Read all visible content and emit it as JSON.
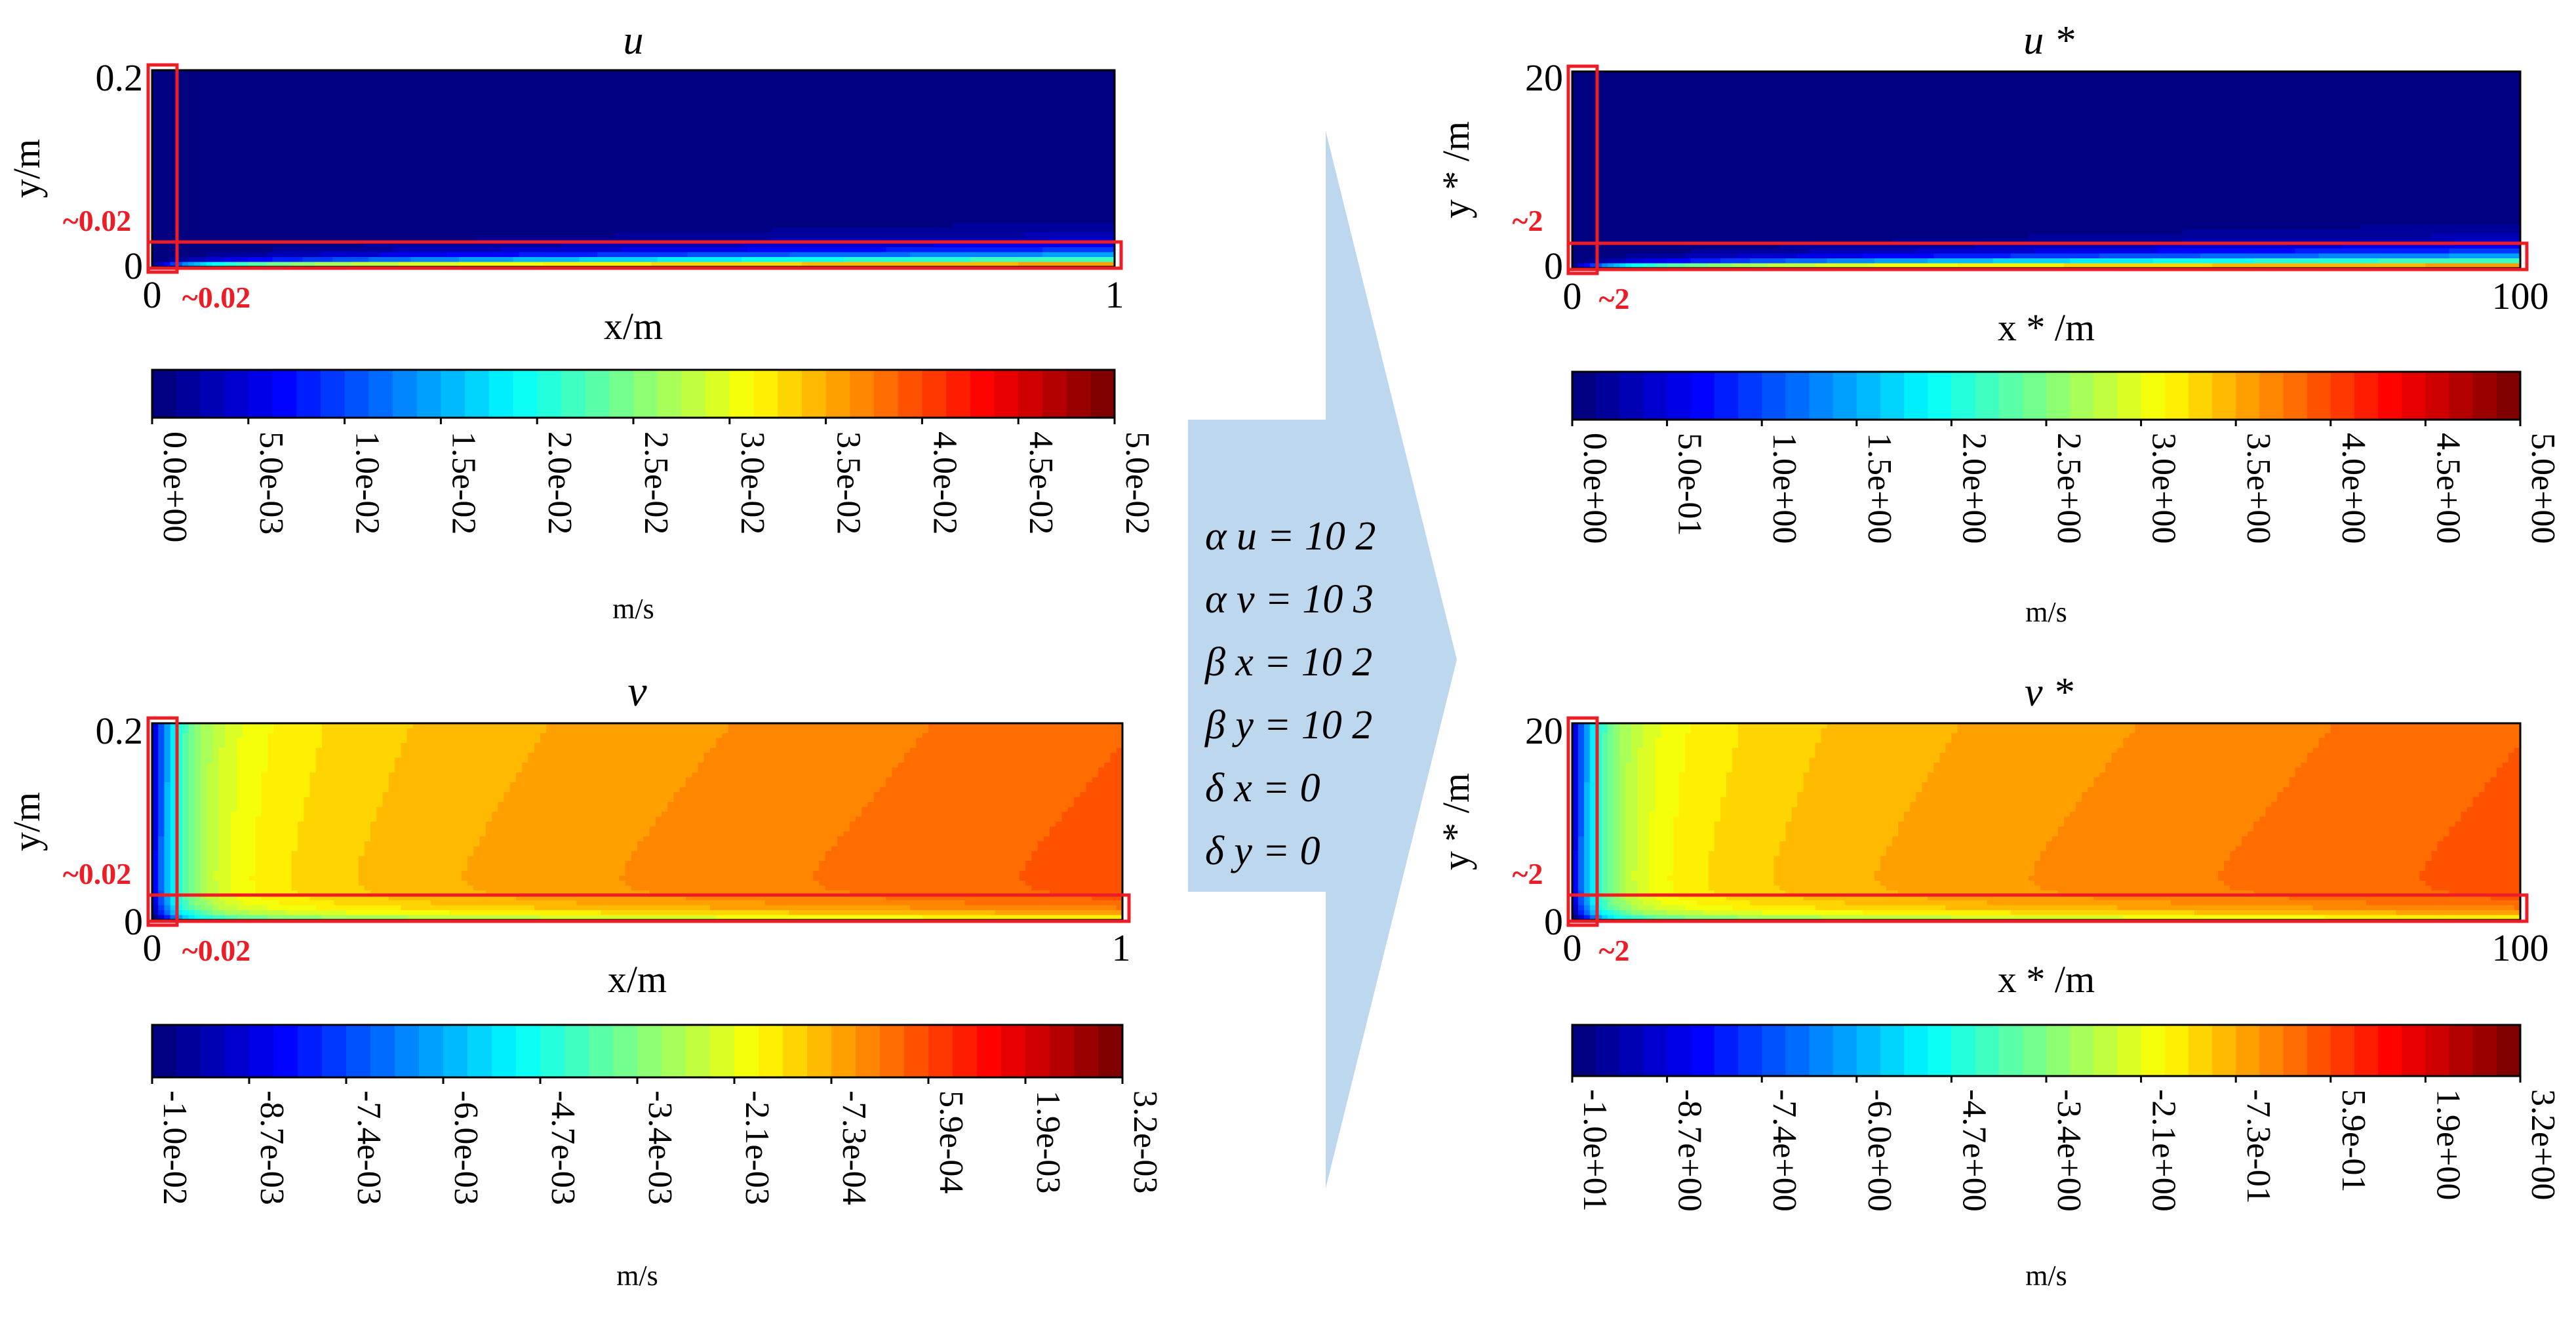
{
  "chart_data": [
    {
      "type": "heatmap",
      "title": "u",
      "xlabel": "x/m",
      "ylabel": "y/m",
      "xlim": [
        0,
        1
      ],
      "ylim": [
        0,
        0.2
      ],
      "x_ticks": [
        "0",
        "1"
      ],
      "y_ticks": [
        "0",
        "0.2"
      ],
      "field": "boundary-layer-u",
      "colormap": "jet",
      "annotations": [
        "~0.02",
        "~0.02"
      ],
      "colorbar": {
        "unit": "m/s",
        "range": [
          0.0,
          0.05
        ],
        "ticks": [
          "0.0e+00",
          "5.0e-03",
          "1.0e-02",
          "1.5e-02",
          "2.0e-02",
          "2.5e-02",
          "3.0e-02",
          "3.5e-02",
          "4.0e-02",
          "4.5e-02",
          "5.0e-02"
        ]
      }
    },
    {
      "type": "heatmap",
      "title": "v",
      "xlabel": "x/m",
      "ylabel": "y/m",
      "xlim": [
        0,
        1
      ],
      "ylim": [
        0,
        0.2
      ],
      "x_ticks": [
        "0",
        "1"
      ],
      "y_ticks": [
        "0",
        "0.2"
      ],
      "field": "boundary-layer-v",
      "colormap": "jet",
      "annotations": [
        "~0.02",
        "~0.02"
      ],
      "colorbar": {
        "unit": "m/s",
        "range": [
          -0.01,
          0.0032
        ],
        "ticks": [
          "-1.0e-02",
          "-8.7e-03",
          "-7.4e-03",
          "-6.0e-03",
          "-4.7e-03",
          "-3.4e-03",
          "-2.1e-03",
          "-7.3e-04",
          "5.9e-04",
          "1.9e-03",
          "3.2e-03"
        ]
      }
    },
    {
      "type": "heatmap",
      "title": "u *",
      "xlabel": "x * /m",
      "ylabel": "y * /m",
      "xlim": [
        0,
        100
      ],
      "ylim": [
        0,
        20
      ],
      "x_ticks": [
        "0",
        "100"
      ],
      "y_ticks": [
        "0",
        "20"
      ],
      "field": "boundary-layer-u",
      "colormap": "jet",
      "annotations": [
        "~2",
        "~2"
      ],
      "colorbar": {
        "unit": "m/s",
        "range": [
          0.0,
          5.0
        ],
        "ticks": [
          "0.0e+00",
          "5.0e-01",
          "1.0e+00",
          "1.5e+00",
          "2.0e+00",
          "2.5e+00",
          "3.0e+00",
          "3.5e+00",
          "4.0e+00",
          "4.5e+00",
          "5.0e+00"
        ]
      }
    },
    {
      "type": "heatmap",
      "title": "v *",
      "xlabel": "x * /m",
      "ylabel": "y * /m",
      "xlim": [
        0,
        100
      ],
      "ylim": [
        0,
        20
      ],
      "x_ticks": [
        "0",
        "100"
      ],
      "y_ticks": [
        "0",
        "20"
      ],
      "field": "boundary-layer-v",
      "colormap": "jet",
      "annotations": [
        "~2",
        "~2"
      ],
      "colorbar": {
        "unit": "m/s",
        "range": [
          -10.0,
          3.2
        ],
        "ticks": [
          "-1.0e+01",
          "-8.7e+00",
          "-7.4e+00",
          "-6.0e+00",
          "-4.7e+00",
          "-3.4e+00",
          "-2.1e+00",
          "-7.3e-01",
          "5.9e-01",
          "1.9e+00",
          "3.2e+00"
        ]
      }
    }
  ],
  "scaling": {
    "lines": [
      "α u = 10 2",
      "α v = 10 3",
      "β x = 10 2",
      "β y = 10 2",
      "δ x = 0",
      "δ y = 0"
    ]
  },
  "colors": {
    "highlight": "#ee1c25",
    "arrow": "#bdd7ee",
    "text": "#000000"
  }
}
